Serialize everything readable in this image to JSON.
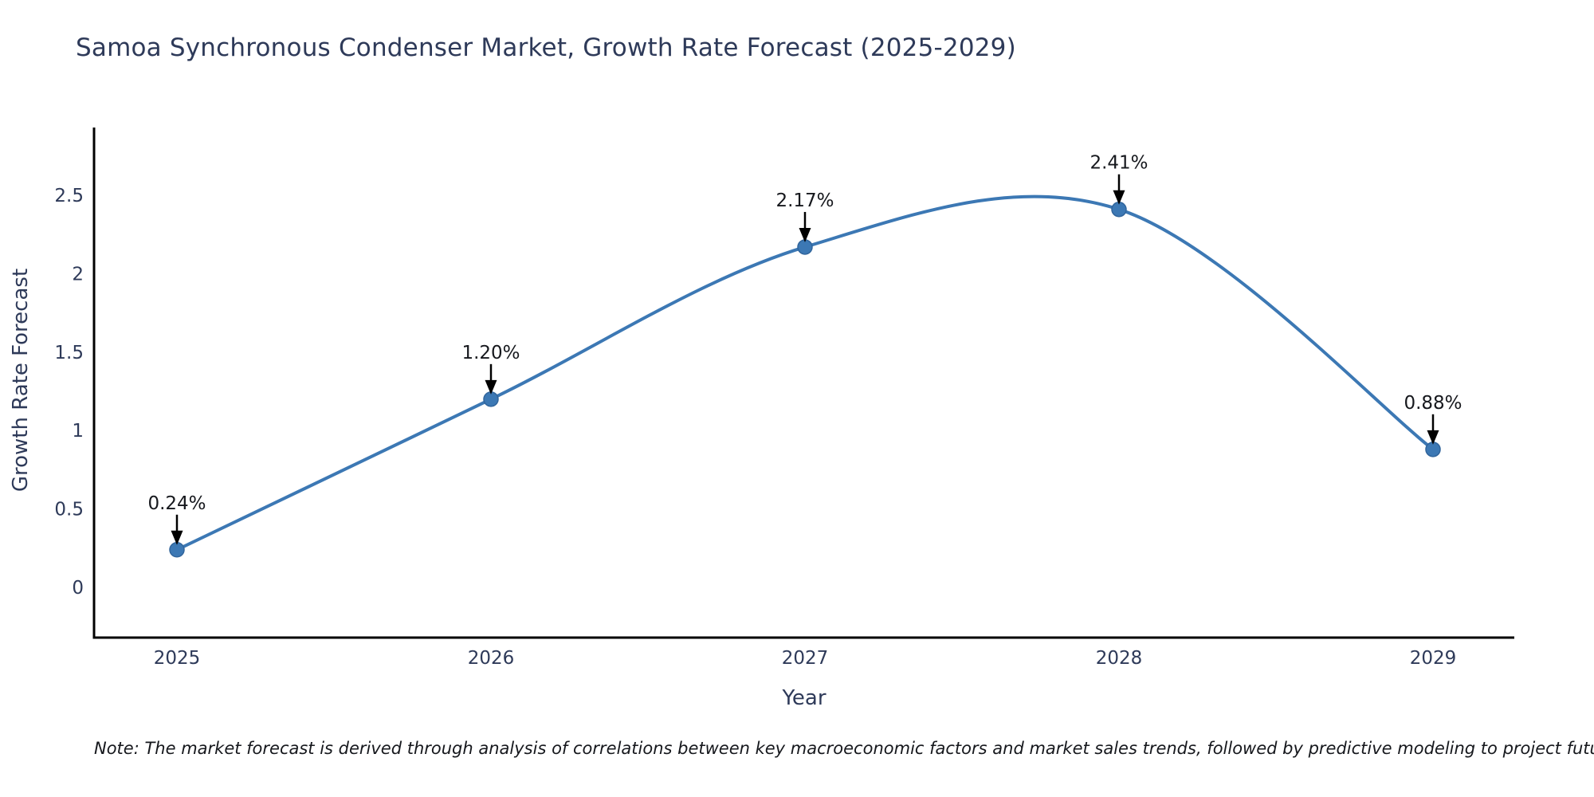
{
  "title": "Samoa Synchronous Condenser Market, Growth Rate Forecast (2025-2029)",
  "note": "Note: The market forecast is derived through analysis of correlations between key macroeconomic factors and market sales trends, followed by predictive modeling to project future sales.",
  "chart_data": {
    "type": "line",
    "title": "Samoa Synchronous Condenser Market, Growth Rate Forecast (2025-2029)",
    "xlabel": "Year",
    "ylabel": "Growth Rate Forecast",
    "x": [
      2025,
      2026,
      2027,
      2028,
      2029
    ],
    "values": [
      0.24,
      1.2,
      2.17,
      2.41,
      0.88
    ],
    "point_labels": [
      "0.24%",
      "1.20%",
      "2.17%",
      "2.41%",
      "0.88%"
    ],
    "xtick_labels": [
      "2025",
      "2026",
      "2027",
      "2028",
      "2029"
    ],
    "ytick_values": [
      0,
      0.5,
      1,
      1.5,
      2,
      2.5
    ],
    "ytick_labels": [
      "0",
      "0.5",
      "1",
      "1.5",
      "2",
      "2.5"
    ],
    "ylim": [
      -0.32,
      3.25
    ],
    "line_shape": "spline",
    "grid": false,
    "legend": false,
    "line_color": "#3c78b4",
    "marker_color": "#3c78b4",
    "marker_edge_color": "#31659c",
    "axis_color": "#000000",
    "annotation_arrow_color": "#000000"
  }
}
